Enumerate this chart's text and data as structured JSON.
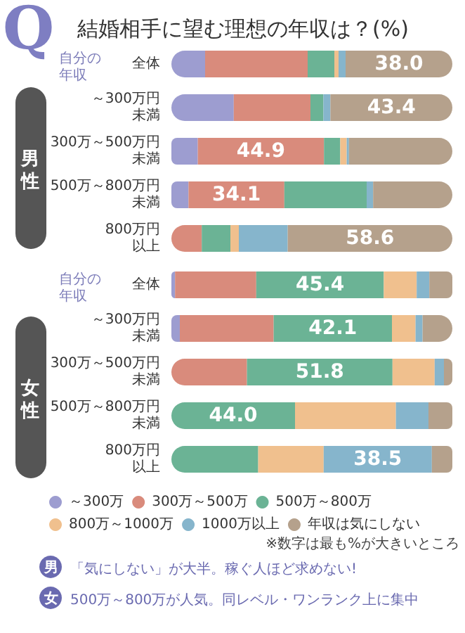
{
  "chart_data": [
    {
      "type": "bar",
      "title": "結婚相手に望む理想の年収は？(%)",
      "ylabel": "男性",
      "orientation": "horizontal",
      "stacked": true,
      "xlim": [
        0,
        100
      ],
      "tick_labels": false,
      "annotations": [
        "Q",
        "自分の年収"
      ],
      "categories": [
        "全体",
        "～300万円未満",
        "300万～500万円未満",
        "500万～800万円未満",
        "800万円以上"
      ],
      "series": [
        {
          "color": "#9d9dd0",
          "values": [
            12.0,
            22.2,
            9.4,
            6.1,
            0
          ]
        },
        {
          "color": "#d98b7c",
          "values": [
            36.5,
            27.3,
            44.9,
            34.1,
            10.8
          ],
          "value_labels": [
            null,
            null,
            "44.9",
            "34.1",
            null
          ]
        },
        {
          "color": "#6bb395",
          "values": [
            9.5,
            4.6,
            5.8,
            29.3,
            10.2
          ]
        },
        {
          "color": "#f0c08e",
          "values": [
            1.5,
            0,
            2.3,
            0,
            3.0
          ]
        },
        {
          "color": "#86b5cc",
          "values": [
            2.5,
            2.5,
            0.8,
            2.3,
            17.4
          ]
        },
        {
          "color": "#b5a18c",
          "values": [
            38.0,
            43.4,
            36.8,
            28.2,
            58.6
          ],
          "value_labels": [
            "38.0",
            "43.4",
            null,
            null,
            "58.6"
          ]
        }
      ]
    },
    {
      "type": "bar",
      "ylabel": "女性",
      "orientation": "horizontal",
      "stacked": true,
      "xlim": [
        0,
        100
      ],
      "tick_labels": false,
      "legend": "bottom",
      "annotations": [
        "自分の年収",
        "※数字は最も%が大きいところ",
        "男",
        "「気にしない」が大半。稼ぐ人ほど求めない!",
        "女",
        "500万～800万が人気。同レベル・ワンランク上に集中"
      ],
      "categories": [
        "全体",
        "～300万円未満",
        "300万～500万円未満",
        "500万～800万円未満",
        "800万円以上"
      ],
      "series": [
        {
          "name": "～300万",
          "color": "#9d9dd0",
          "values": [
            1.3,
            3.0,
            0,
            0,
            0
          ]
        },
        {
          "name": "300万～500万",
          "color": "#d98b7c",
          "values": [
            28.9,
            33.4,
            26.9,
            0,
            0
          ]
        },
        {
          "name": "500万～800万",
          "color": "#6bb395",
          "values": [
            45.4,
            42.1,
            51.8,
            44.0,
            30.9
          ],
          "value_labels": [
            "45.4",
            "42.1",
            "51.8",
            "44.0",
            null
          ]
        },
        {
          "name": "800万～1000万",
          "color": "#f0c08e",
          "values": [
            11.7,
            8.4,
            15.0,
            35.9,
            23.3
          ]
        },
        {
          "name": "1000万以上",
          "color": "#86b5cc",
          "values": [
            4.5,
            2.5,
            3.3,
            11.6,
            38.5
          ],
          "value_labels": [
            null,
            null,
            null,
            null,
            "38.5"
          ]
        },
        {
          "name": "年収は気にしない",
          "color": "#b5a18c",
          "values": [
            8.2,
            10.6,
            3.0,
            8.5,
            7.3
          ]
        }
      ]
    }
  ]
}
